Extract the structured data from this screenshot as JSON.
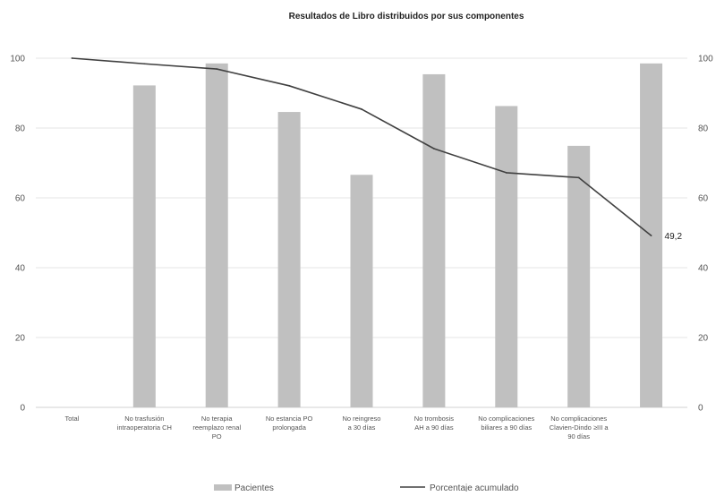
{
  "chart_data": {
    "type": "bar",
    "title": "Resultados de Libro distribuidos por sus componentes",
    "categories": [
      [
        "Total"
      ],
      [
        "No trasfusión",
        "intraoperatoria CH"
      ],
      [
        "No terapia",
        "reemplazo renal",
        "PO"
      ],
      [
        "No estancia PO",
        "prolongada"
      ],
      [
        "No reingreso",
        "a 30 días"
      ],
      [
        "No trombosis",
        "AH a 90 días"
      ],
      [
        "No complicaciones",
        "biliares a 90 días"
      ],
      [
        "No complicaciones",
        "Clavien-Dindo ≥III a",
        "90 días"
      ],
      [
        ""
      ]
    ],
    "series": [
      {
        "name": "Pacientes",
        "kind": "bar",
        "color": "#c0c0c0",
        "values": [
          null,
          92.2,
          98.5,
          84.6,
          66.6,
          95.4,
          86.3,
          74.9,
          98.5
        ]
      },
      {
        "name": "Porcentaje acumulado",
        "kind": "line",
        "color": "#404040",
        "values": [
          100,
          98.4,
          96.9,
          92.1,
          85.4,
          74.1,
          67.2,
          65.8,
          49.2
        ]
      }
    ],
    "data_labels": [
      {
        "series": 1,
        "index": 8,
        "text": "49,2"
      }
    ],
    "ylim": [
      0,
      100
    ],
    "y_ticks": [
      0,
      20,
      40,
      60,
      80,
      100
    ],
    "secondary_ylim": [
      0,
      100
    ],
    "secondary_y_ticks": [
      0,
      20,
      40,
      60,
      80,
      100
    ],
    "grid": true,
    "legend_position": "bottom",
    "colors": {
      "bar": "#c0c0c0",
      "line": "#404040",
      "grid": "#e6e6e6",
      "axis": "#d0d0d0",
      "text": "#555555"
    }
  }
}
